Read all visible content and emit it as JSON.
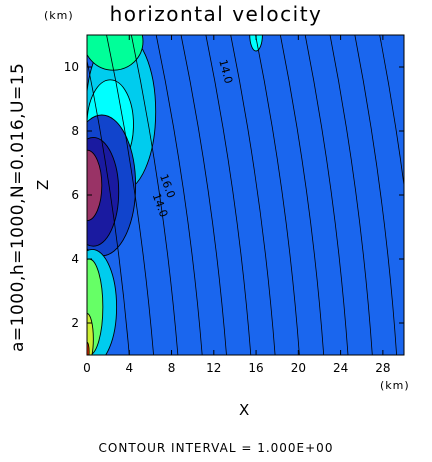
{
  "chart_data": {
    "type": "heatmap",
    "title": "horizontal velocity",
    "xlabel": "X",
    "ylabel": "Z",
    "x_unit": "(km)",
    "y_unit": "(km)",
    "xlim": [
      0,
      30
    ],
    "ylim": [
      1,
      11
    ],
    "x_ticks": [
      0,
      4,
      8,
      12,
      16,
      20,
      24,
      28
    ],
    "y_ticks": [
      2,
      4,
      6,
      8,
      10
    ],
    "x_tick_labels": [
      "0",
      "4",
      "8",
      "12",
      "16",
      "20",
      "24",
      "28"
    ],
    "y_tick_labels": [
      "2",
      "4",
      "6",
      "8",
      "10"
    ],
    "parameters_label": "a=1000,h=1000,N=0.016,U=15",
    "contour_interval_text": "CONTOUR INTERVAL = 1.000E+00",
    "background_value": 15,
    "regions": [
      {
        "level": 16,
        "color": "#00ccee",
        "x": 3.2,
        "z": 8.6,
        "rx": 3.3,
        "rz": 2.5
      },
      {
        "level": 17,
        "color": "#00ffff",
        "x": 2.2,
        "z": 8.2,
        "rx": 2.2,
        "rz": 1.4
      },
      {
        "level": 14,
        "color": "#1144cc",
        "x": 1.4,
        "z": 6.3,
        "rx": 3.2,
        "rz": 2.2
      },
      {
        "level": 13,
        "color": "#1a1aa0",
        "x": 0.6,
        "z": 6.1,
        "rx": 2.4,
        "rz": 1.7
      },
      {
        "level": 12,
        "color": "#993366",
        "x": 0.0,
        "z": 6.3,
        "rx": 1.4,
        "rz": 1.1
      },
      {
        "level": 17,
        "color": "#00ccee",
        "x": 0.5,
        "z": 2.5,
        "rx": 2.3,
        "rz": 1.8
      },
      {
        "level": 18,
        "color": "#66ff66",
        "x": 0.2,
        "z": 2.5,
        "rx": 1.3,
        "rz": 1.5
      },
      {
        "level": 20,
        "color": "#ccee33",
        "x": 0.0,
        "z": 1.5,
        "rx": 0.6,
        "rz": 0.8
      },
      {
        "level": 22,
        "color": "#ff3300",
        "x": 0.0,
        "z": 1.1,
        "rx": 0.2,
        "rz": 0.3
      },
      {
        "level": 17,
        "color": "#00ff99",
        "x": 2.5,
        "z": 10.8,
        "rx": 2.8,
        "rz": 0.9
      },
      {
        "level": 17,
        "color": "#00ffff",
        "x": 16.0,
        "z": 11.0,
        "rx": 0.6,
        "rz": 0.5
      }
    ],
    "contour_labels": [
      {
        "text": "14.0",
        "x": 12.5,
        "z": 10.2,
        "rotate": 75
      },
      {
        "text": "16.0",
        "x": 6.9,
        "z": 6.6,
        "rotate": 70
      },
      {
        "text": "14.0",
        "x": 6.2,
        "z": 6.0,
        "rotate": 70
      }
    ]
  }
}
